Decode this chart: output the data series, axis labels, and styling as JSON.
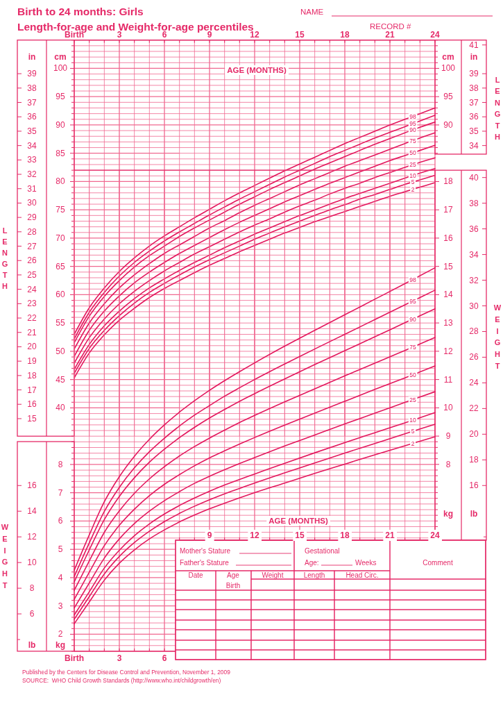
{
  "chart_data": [
    {
      "type": "line",
      "title": "Birth to 24 months: Girls",
      "subtitle": "Length-for-age and Weight-for-age percentiles",
      "ylabel": "cm",
      "y2label": "in",
      "annotations": [
        "LENGTH",
        "NAME",
        "RECORD #"
      ],
      "x": [
        0,
        1,
        2,
        3,
        4,
        5,
        6,
        7
      ],
      "xlim": [
        0,
        7
      ],
      "xticks": [
        {
          "value": 0,
          "label": "Birth"
        },
        {
          "value": 1,
          "label": null
        },
        {
          "value": 2,
          "label": null
        },
        3,
        {
          "value": 4,
          "label": null
        },
        {
          "value": 5,
          "label": null
        },
        6
      ],
      "ylim": [
        35,
        105
      ],
      "yticks": [
        {
          "value": 35,
          "label": null
        },
        {
          "value": 36,
          "label": null
        },
        {
          "value": 37,
          "label": null
        },
        {
          "value": 38,
          "label": null
        },
        {
          "value": 39,
          "label": null
        },
        40,
        {
          "value": 41,
          "label": null
        },
        {
          "value": 42,
          "label": null
        },
        {
          "value": 43,
          "label": null
        },
        {
          "value": 44,
          "label": null
        },
        45,
        {
          "value": 46,
          "label": null
        },
        {
          "value": 47,
          "label": null
        },
        {
          "value": 48,
          "label": null
        },
        {
          "value": 49,
          "label": null
        },
        50,
        {
          "value": 51,
          "label": null
        },
        {
          "value": 52,
          "label": null
        },
        {
          "value": 53,
          "label": null
        },
        {
          "value": 54,
          "label": null
        },
        55,
        {
          "value": 56,
          "label": null
        },
        {
          "value": 57,
          "label": null
        },
        {
          "value": 58,
          "label": null
        },
        {
          "value": 59,
          "label": null
        },
        60,
        {
          "value": 61,
          "label": null
        },
        {
          "value": 62,
          "label": null
        },
        {
          "value": 63,
          "label": null
        },
        {
          "value": 64,
          "label": null
        },
        65,
        {
          "value": 66,
          "label": null
        },
        {
          "value": 67,
          "label": null
        },
        {
          "value": 68,
          "label": null
        },
        {
          "value": 69,
          "label": null
        },
        70,
        {
          "value": 71,
          "label": null
        },
        {
          "value": 72,
          "label": null
        },
        {
          "value": 73,
          "label": null
        },
        {
          "value": 74,
          "label": null
        },
        75,
        {
          "value": 76,
          "label": null
        },
        {
          "value": 77,
          "label": null
        },
        {
          "value": 78,
          "label": null
        },
        {
          "value": 79,
          "label": null
        },
        80,
        {
          "value": 81,
          "label": null
        },
        {
          "value": 82,
          "label": null
        },
        {
          "value": 83,
          "label": null
        },
        {
          "value": 84,
          "label": null
        },
        85,
        {
          "value": 86,
          "label": null
        },
        {
          "value": 87,
          "label": null
        },
        {
          "value": 88,
          "label": null
        },
        {
          "value": 89,
          "label": null
        },
        90,
        {
          "value": 91,
          "label": null
        },
        {
          "value": 92,
          "label": null
        },
        {
          "value": 93,
          "label": null
        },
        {
          "value": 94,
          "label": null
        },
        95,
        {
          "value": 96,
          "label": null
        },
        {
          "value": 97,
          "label": null
        },
        {
          "value": 98,
          "label": null
        },
        {
          "value": 99,
          "label": null
        },
        100,
        {
          "value": 101,
          "label": null
        },
        {
          "value": 102,
          "label": null
        },
        {
          "value": 103,
          "label": null
        },
        {
          "value": 104,
          "label": null
        },
        {
          "value": 105,
          "label": null
        }
      ],
      "y2lim": [
        13.78,
        41.34
      ],
      "y2ticks": [
        15,
        16,
        17,
        18,
        19,
        20,
        21,
        22,
        23,
        24,
        25,
        26,
        27,
        28,
        29,
        30,
        31,
        32,
        33,
        34,
        35,
        36,
        37,
        38,
        39
      ],
      "grid": true,
      "series": [
        {
          "color": "#e3175d",
          "values": [
            53.0,
            57.7,
            61.2,
            64.1,
            66.5,
            68.6,
            70.4,
            72.0
          ]
        },
        {
          "color": "#e3175d",
          "values": [
            52.2,
            56.9,
            60.4,
            63.3,
            65.7,
            67.7,
            69.5,
            71.1
          ]
        },
        {
          "color": "#e3175d",
          "values": [
            51.5,
            56.2,
            59.7,
            62.5,
            64.9,
            66.9,
            68.6,
            70.3
          ]
        },
        {
          "color": "#e3175d",
          "values": [
            50.4,
            55.0,
            58.4,
            61.2,
            63.5,
            65.5,
            67.3,
            68.8
          ]
        },
        {
          "color": "#e3175d",
          "values": [
            49.1,
            53.7,
            57.1,
            59.8,
            62.1,
            64.0,
            65.7,
            67.3
          ]
        },
        {
          "color": "#e3175d",
          "values": [
            47.9,
            52.4,
            55.7,
            58.4,
            60.6,
            62.5,
            64.2,
            65.7
          ]
        },
        {
          "color": "#e3175d",
          "values": [
            46.8,
            51.2,
            54.5,
            57.1,
            59.3,
            61.2,
            62.8,
            64.3
          ]
        },
        {
          "color": "#e3175d",
          "values": [
            46.1,
            50.5,
            53.7,
            56.3,
            58.5,
            60.4,
            62.0,
            63.5
          ]
        },
        {
          "color": "#e3175d",
          "values": [
            45.3,
            49.7,
            52.9,
            55.5,
            57.6,
            59.5,
            61.1,
            62.5
          ]
        }
      ]
    },
    {
      "type": "line",
      "xlabel": "AGE (MONTHS)",
      "ylabel": "cm",
      "y2label": "in",
      "annotations": [
        "LENGTH"
      ],
      "x": [
        7,
        8,
        9,
        10,
        11,
        12,
        13,
        14,
        15,
        16,
        17,
        18,
        19,
        20,
        21,
        22,
        23,
        24
      ],
      "xlim": [
        7,
        24
      ],
      "xticks": [
        {
          "value": 7,
          "label": null
        },
        {
          "value": 8,
          "label": null
        },
        9,
        {
          "value": 10,
          "label": null
        },
        {
          "value": 11,
          "label": null
        },
        12,
        {
          "value": 13,
          "label": null
        },
        {
          "value": 14,
          "label": null
        },
        15,
        {
          "value": 16,
          "label": null
        },
        {
          "value": 17,
          "label": null
        },
        18,
        {
          "value": 19,
          "label": null
        },
        {
          "value": 20,
          "label": null
        },
        21,
        {
          "value": 22,
          "label": null
        },
        {
          "value": 23,
          "label": null
        },
        24
      ],
      "ylim": [
        35,
        105
      ],
      "yticks": [
        {
          "value": 35,
          "label": null
        },
        {
          "value": 36,
          "label": null
        },
        {
          "value": 37,
          "label": null
        },
        {
          "value": 38,
          "label": null
        },
        {
          "value": 39,
          "label": null
        },
        {
          "value": 40,
          "label": null
        },
        {
          "value": 41,
          "label": null
        },
        {
          "value": 42,
          "label": null
        },
        {
          "value": 43,
          "label": null
        },
        {
          "value": 44,
          "label": null
        },
        {
          "value": 45,
          "label": null
        },
        {
          "value": 46,
          "label": null
        },
        {
          "value": 47,
          "label": null
        },
        {
          "value": 48,
          "label": null
        },
        {
          "value": 49,
          "label": null
        },
        {
          "value": 50,
          "label": null
        },
        {
          "value": 51,
          "label": null
        },
        {
          "value": 52,
          "label": null
        },
        {
          "value": 53,
          "label": null
        },
        {
          "value": 54,
          "label": null
        },
        {
          "value": 55,
          "label": null
        },
        {
          "value": 56,
          "label": null
        },
        {
          "value": 57,
          "label": null
        },
        {
          "value": 58,
          "label": null
        },
        {
          "value": 59,
          "label": null
        },
        {
          "value": 60,
          "label": null
        },
        {
          "value": 61,
          "label": null
        },
        {
          "value": 62,
          "label": null
        },
        {
          "value": 63,
          "label": null
        },
        {
          "value": 64,
          "label": null
        },
        {
          "value": 65,
          "label": null
        },
        {
          "value": 66,
          "label": null
        },
        {
          "value": 67,
          "label": null
        },
        {
          "value": 68,
          "label": null
        },
        {
          "value": 69,
          "label": null
        },
        {
          "value": 70,
          "label": null
        },
        {
          "value": 71,
          "label": null
        },
        {
          "value": 72,
          "label": null
        },
        {
          "value": 73,
          "label": null
        },
        {
          "value": 74,
          "label": null
        },
        {
          "value": 75,
          "label": null
        },
        {
          "value": 76,
          "label": null
        },
        {
          "value": 77,
          "label": null
        },
        {
          "value": 78,
          "label": null
        },
        {
          "value": 79,
          "label": null
        },
        {
          "value": 80,
          "label": null
        },
        {
          "value": 81,
          "label": null
        },
        {
          "value": 82,
          "label": null
        },
        {
          "value": 83,
          "label": null
        },
        {
          "value": 84,
          "label": null
        },
        {
          "value": 85,
          "label": null
        },
        {
          "value": 86,
          "label": null
        },
        {
          "value": 87,
          "label": null
        },
        {
          "value": 88,
          "label": null
        },
        {
          "value": 89,
          "label": null
        },
        90,
        {
          "value": 91,
          "label": null
        },
        {
          "value": 92,
          "label": null
        },
        {
          "value": 93,
          "label": null
        },
        {
          "value": 94,
          "label": null
        },
        95,
        {
          "value": 96,
          "label": null
        },
        {
          "value": 97,
          "label": null
        },
        {
          "value": 98,
          "label": null
        },
        {
          "value": 99,
          "label": null
        },
        100,
        {
          "value": 101,
          "label": null
        },
        {
          "value": 102,
          "label": null
        },
        {
          "value": 103,
          "label": null
        },
        {
          "value": 104,
          "label": null
        },
        {
          "value": 105,
          "label": null
        }
      ],
      "y2lim": [
        13.78,
        41.34
      ],
      "y2ticks": [
        34,
        35,
        36,
        37,
        38,
        39,
        41
      ],
      "grid": true,
      "series": [
        {
          "name": "98",
          "color": "#e3175d",
          "values": [
            72.0,
            73.6,
            75.1,
            76.6,
            78.0,
            79.3,
            80.6,
            81.9,
            83.1,
            84.3,
            85.5,
            86.7,
            87.8,
            88.9,
            90.0,
            91.0,
            92.0,
            93.0
          ]
        },
        {
          "name": "95",
          "color": "#e3175d",
          "values": [
            71.1,
            72.6,
            74.1,
            75.5,
            76.9,
            78.2,
            79.5,
            80.8,
            82.0,
            83.2,
            84.4,
            85.5,
            86.6,
            87.7,
            88.7,
            89.7,
            90.7,
            91.7
          ]
        },
        {
          "name": "90",
          "color": "#e3175d",
          "values": [
            70.3,
            71.8,
            73.2,
            74.6,
            76.0,
            77.3,
            78.6,
            79.8,
            81.0,
            82.2,
            83.3,
            84.4,
            85.5,
            86.6,
            87.6,
            88.6,
            89.6,
            90.5
          ]
        },
        {
          "name": "75",
          "color": "#e3175d",
          "values": [
            68.8,
            70.3,
            71.8,
            73.1,
            74.5,
            75.8,
            77.0,
            78.2,
            79.4,
            80.5,
            81.6,
            82.7,
            83.7,
            84.7,
            85.7,
            86.7,
            87.7,
            88.6
          ]
        },
        {
          "name": "50",
          "color": "#e3175d",
          "values": [
            67.3,
            68.7,
            70.1,
            71.5,
            72.8,
            74.0,
            75.2,
            76.4,
            77.5,
            78.6,
            79.7,
            80.7,
            81.7,
            82.7,
            83.7,
            84.6,
            85.5,
            86.4
          ]
        },
        {
          "name": "25",
          "color": "#e3175d",
          "values": [
            65.7,
            67.2,
            68.5,
            69.8,
            71.1,
            72.3,
            73.4,
            74.6,
            75.7,
            76.7,
            77.8,
            78.8,
            79.7,
            80.7,
            81.6,
            82.5,
            83.4,
            84.2
          ]
        },
        {
          "name": "10",
          "color": "#e3175d",
          "values": [
            64.3,
            65.7,
            67.0,
            68.3,
            69.5,
            70.7,
            71.8,
            72.9,
            74.0,
            75.0,
            76.0,
            77.0,
            77.9,
            78.8,
            79.7,
            80.6,
            81.5,
            82.3
          ]
        },
        {
          "name": "5",
          "color": "#e3175d",
          "values": [
            63.5,
            64.9,
            66.2,
            67.4,
            68.6,
            69.8,
            70.9,
            72.0,
            73.0,
            74.0,
            75.0,
            75.9,
            76.9,
            77.7,
            78.6,
            79.5,
            80.3,
            81.1
          ]
        },
        {
          "name": "2",
          "color": "#e3175d",
          "values": [
            62.5,
            63.9,
            65.2,
            66.4,
            67.6,
            68.7,
            69.8,
            70.9,
            71.9,
            72.9,
            73.8,
            74.7,
            75.6,
            76.5,
            77.4,
            78.2,
            79.0,
            79.8
          ]
        }
      ]
    },
    {
      "type": "line",
      "ylabel": "kg",
      "y2label": "lb",
      "annotations": [
        "WEIGHT"
      ],
      "x": [
        0,
        1,
        2,
        3,
        4,
        5,
        6,
        7
      ],
      "xlim": [
        0,
        7
      ],
      "xticks": [
        {
          "value": 0,
          "label": "Birth"
        },
        {
          "value": 1,
          "label": null
        },
        {
          "value": 2,
          "label": null
        },
        3,
        {
          "value": 4,
          "label": null
        },
        {
          "value": 5,
          "label": null
        },
        6
      ],
      "ylim": [
        1.4,
        18.4
      ],
      "yticks": [
        {
          "value": 1.4,
          "label": null
        },
        {
          "value": 1.6,
          "label": null
        },
        {
          "value": 1.8,
          "label": null
        },
        2,
        {
          "value": 2.2,
          "label": null
        },
        {
          "value": 2.4,
          "label": null
        },
        {
          "value": 2.6,
          "label": null
        },
        {
          "value": 2.8,
          "label": null
        },
        3,
        {
          "value": 3.2,
          "label": null
        },
        {
          "value": 3.4,
          "label": null
        },
        {
          "value": 3.6,
          "label": null
        },
        {
          "value": 3.8,
          "label": null
        },
        4,
        {
          "value": 4.2,
          "label": null
        },
        {
          "value": 4.4,
          "label": null
        },
        {
          "value": 4.6,
          "label": null
        },
        {
          "value": 4.8,
          "label": null
        },
        5,
        {
          "value": 5.2,
          "label": null
        },
        {
          "value": 5.4,
          "label": null
        },
        {
          "value": 5.6,
          "label": null
        },
        {
          "value": 5.8,
          "label": null
        },
        6,
        {
          "value": 6.2,
          "label": null
        },
        {
          "value": 6.4,
          "label": null
        },
        {
          "value": 6.6,
          "label": null
        },
        {
          "value": 6.8,
          "label": null
        },
        7,
        {
          "value": 7.2,
          "label": null
        },
        {
          "value": 7.4,
          "label": null
        },
        {
          "value": 7.6,
          "label": null
        },
        {
          "value": 7.8,
          "label": null
        },
        8,
        {
          "value": 8.2,
          "label": null
        },
        {
          "value": 8.4,
          "label": null
        },
        {
          "value": 8.6,
          "label": null
        },
        {
          "value": 8.8,
          "label": null
        }
      ],
      "y2lim": [
        3.09,
        40.57
      ],
      "y2ticks": [
        {
          "value": 4,
          "label": null
        },
        6,
        8,
        10,
        12,
        14,
        16
      ],
      "grid": true,
      "series": [
        {
          "color": "#e3175d",
          "values": [
            4.26,
            5.51,
            6.68,
            7.57,
            8.29,
            8.89,
            9.4,
            9.85
          ]
        },
        {
          "color": "#e3175d",
          "values": [
            4.04,
            5.23,
            6.34,
            7.19,
            7.88,
            8.45,
            8.93,
            9.36
          ]
        },
        {
          "color": "#e3175d",
          "values": [
            3.85,
            4.98,
            6.05,
            6.87,
            7.53,
            8.08,
            8.54,
            8.95
          ]
        },
        {
          "color": "#e3175d",
          "values": [
            3.55,
            4.59,
            5.6,
            6.36,
            6.98,
            7.49,
            7.92,
            8.3
          ]
        },
        {
          "color": "#e3175d",
          "values": [
            3.23,
            4.19,
            5.13,
            5.85,
            6.42,
            6.9,
            7.3,
            7.64
          ]
        },
        {
          "color": "#e3175d",
          "values": [
            2.93,
            3.81,
            4.69,
            5.37,
            5.91,
            6.35,
            6.72,
            7.04
          ]
        },
        {
          "color": "#e3175d",
          "values": [
            2.68,
            3.5,
            4.34,
            4.97,
            5.48,
            5.9,
            6.25,
            6.55
          ]
        },
        {
          "color": "#e3175d",
          "values": [
            2.53,
            3.33,
            4.13,
            4.75,
            5.24,
            5.64,
            5.98,
            6.27
          ]
        },
        {
          "color": "#e3175d",
          "values": [
            2.37,
            3.14,
            3.91,
            4.51,
            4.98,
            5.37,
            5.69,
            5.97
          ]
        }
      ]
    },
    {
      "type": "line",
      "xlabel": "AGE (MONTHS)",
      "ylabel": "kg",
      "y2label": "lb",
      "annotations": [
        "WEIGHT",
        "Mother's Stature",
        "Father's Stature",
        "Gestational",
        "Age:",
        "Weeks",
        "Comment",
        "Date",
        "Age",
        "Weight",
        "Length",
        "Head Circ.",
        "Birth",
        "Published by the Centers for Disease Control and Prevention, November 1, 2009",
        "SOURCE:  WHO Child Growth Standards (http://www.who.int/childgrowth/en)"
      ],
      "x": [
        7,
        8,
        9,
        10,
        11,
        12,
        14,
        16,
        18,
        20,
        22,
        24
      ],
      "xlim": [
        7,
        24
      ],
      "xticks": [
        {
          "value": 7,
          "label": null
        },
        {
          "value": 8,
          "label": null
        },
        9,
        {
          "value": 10,
          "label": null
        },
        {
          "value": 11,
          "label": null
        },
        12,
        {
          "value": 13,
          "label": null
        },
        {
          "value": 14,
          "label": null
        },
        15,
        {
          "value": 16,
          "label": null
        },
        {
          "value": 17,
          "label": null
        },
        18,
        {
          "value": 19,
          "label": null
        },
        {
          "value": 20,
          "label": null
        },
        21,
        {
          "value": 22,
          "label": null
        },
        {
          "value": 23,
          "label": null
        },
        24
      ],
      "ylim": [
        5.32,
        18.4
      ],
      "yticks": [
        {
          "value": 5.4,
          "label": null
        },
        {
          "value": 5.6,
          "label": null
        },
        {
          "value": 5.8,
          "label": null
        },
        {
          "value": 6,
          "label": null
        },
        {
          "value": 6.2,
          "label": null
        },
        {
          "value": 6.4,
          "label": null
        },
        {
          "value": 6.6,
          "label": null
        },
        {
          "value": 6.8,
          "label": null
        },
        {
          "value": 7,
          "label": null
        },
        {
          "value": 7.2,
          "label": null
        },
        {
          "value": 7.4,
          "label": null
        },
        {
          "value": 7.6,
          "label": null
        },
        {
          "value": 7.8,
          "label": null
        },
        8,
        {
          "value": 8.2,
          "label": null
        },
        {
          "value": 8.4,
          "label": null
        },
        {
          "value": 8.6,
          "label": null
        },
        {
          "value": 8.8,
          "label": null
        },
        9,
        10,
        11,
        12,
        13,
        14,
        15,
        16,
        17,
        18
      ],
      "y2lim": [
        11.74,
        40.57
      ],
      "y2ticks": [
        {
          "value": 12,
          "label": null
        },
        16,
        18,
        20,
        22,
        24,
        26,
        28,
        30,
        32,
        34,
        36,
        38,
        40
      ],
      "grid": true,
      "series": [
        {
          "name": "98",
          "color": "#e3175d",
          "values": [
            9.85,
            10.25,
            10.62,
            10.96,
            11.28,
            11.59,
            12.18,
            12.74,
            13.29,
            13.84,
            14.39,
            14.95
          ]
        },
        {
          "name": "95",
          "color": "#e3175d",
          "values": [
            9.36,
            9.74,
            10.08,
            10.41,
            10.71,
            11.0,
            11.55,
            12.08,
            12.6,
            13.12,
            13.64,
            14.16
          ]
        },
        {
          "name": "90",
          "color": "#e3175d",
          "values": [
            8.95,
            9.31,
            9.64,
            9.94,
            10.23,
            10.5,
            11.02,
            11.53,
            12.02,
            12.51,
            13.01,
            13.5
          ]
        },
        {
          "name": "75",
          "color": "#e3175d",
          "values": [
            8.3,
            8.63,
            8.93,
            9.21,
            9.48,
            9.73,
            10.21,
            10.67,
            11.13,
            11.58,
            12.03,
            12.49
          ]
        },
        {
          "name": "50",
          "color": "#e3175d",
          "values": [
            7.64,
            7.95,
            8.23,
            8.48,
            8.72,
            8.95,
            9.39,
            9.81,
            10.23,
            10.65,
            11.06,
            11.48
          ]
        },
        {
          "name": "25",
          "color": "#e3175d",
          "values": [
            7.04,
            7.33,
            7.58,
            7.81,
            8.03,
            8.24,
            8.65,
            9.04,
            9.43,
            9.81,
            10.19,
            10.57
          ]
        },
        {
          "name": "10",
          "color": "#e3175d",
          "values": [
            6.55,
            6.81,
            7.05,
            7.27,
            7.47,
            7.66,
            8.04,
            8.41,
            8.77,
            9.12,
            9.47,
            9.83
          ]
        },
        {
          "name": "5",
          "color": "#e3175d",
          "values": [
            6.27,
            6.52,
            6.75,
            6.96,
            7.15,
            7.34,
            7.7,
            8.05,
            8.4,
            8.74,
            9.08,
            9.42
          ]
        },
        {
          "name": "2",
          "color": "#e3175d",
          "values": [
            5.97,
            6.21,
            6.43,
            6.63,
            6.82,
            7.0,
            7.34,
            7.68,
            8.01,
            8.34,
            8.66,
            8.98
          ]
        }
      ]
    }
  ]
}
